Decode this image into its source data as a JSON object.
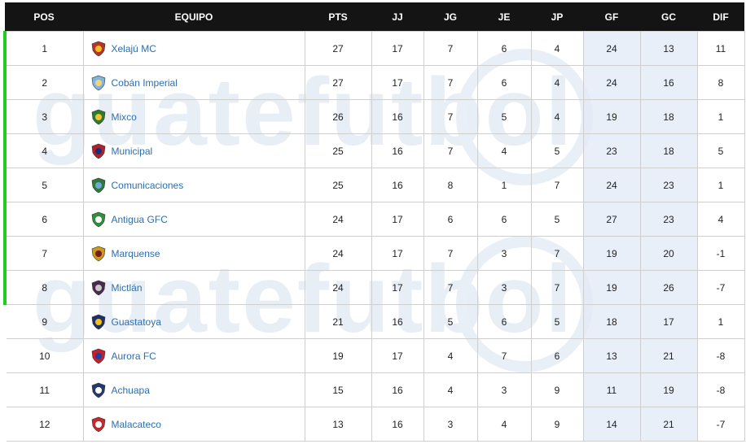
{
  "columns": [
    "POS",
    "EQUIPO",
    "PTS",
    "JJ",
    "JG",
    "JE",
    "JP",
    "GF",
    "GC",
    "DIF"
  ],
  "rows": [
    {
      "pos": "1",
      "team": "Xelajú MC",
      "pts": "27",
      "jj": "17",
      "jg": "7",
      "je": "6",
      "jp": "4",
      "gf": "24",
      "gc": "13",
      "dif": "11",
      "logo": "xelaju-shield",
      "c1": "#b8322a",
      "c2": "#f0c020"
    },
    {
      "pos": "2",
      "team": "Cobán Imperial",
      "pts": "27",
      "jj": "17",
      "jg": "7",
      "je": "6",
      "jp": "4",
      "gf": "24",
      "gc": "16",
      "dif": "8",
      "logo": "coban-shield",
      "c1": "#7fb6e0",
      "c2": "#f2d27a"
    },
    {
      "pos": "3",
      "team": "Mixco",
      "pts": "26",
      "jj": "16",
      "jg": "7",
      "je": "5",
      "jp": "4",
      "gf": "19",
      "gc": "18",
      "dif": "1",
      "logo": "mixco-shield",
      "c1": "#2d7b2f",
      "c2": "#f2c230"
    },
    {
      "pos": "4",
      "team": "Municipal",
      "pts": "25",
      "jj": "16",
      "jg": "7",
      "je": "4",
      "jp": "5",
      "gf": "23",
      "gc": "18",
      "dif": "5",
      "logo": "municipal-shield",
      "c1": "#b3202a",
      "c2": "#1b2f73"
    },
    {
      "pos": "5",
      "team": "Comunicaciones",
      "pts": "25",
      "jj": "16",
      "jg": "8",
      "je": "1",
      "jp": "7",
      "gf": "24",
      "gc": "23",
      "dif": "1",
      "logo": "comunicaciones-shield",
      "c1": "#2e7a3b",
      "c2": "#6fa8d8"
    },
    {
      "pos": "6",
      "team": "Antigua GFC",
      "pts": "24",
      "jj": "17",
      "jg": "6",
      "je": "6",
      "jp": "5",
      "gf": "27",
      "gc": "23",
      "dif": "4",
      "logo": "antigua-shield",
      "c1": "#2f8f3a",
      "c2": "#ffffff"
    },
    {
      "pos": "7",
      "team": "Marquense",
      "pts": "24",
      "jj": "17",
      "jg": "7",
      "je": "3",
      "jp": "7",
      "gf": "19",
      "gc": "20",
      "dif": "-1",
      "logo": "marquense-shield",
      "c1": "#c89a1e",
      "c2": "#7a1a1a"
    },
    {
      "pos": "8",
      "team": "Mictlán",
      "pts": "24",
      "jj": "17",
      "jg": "7",
      "je": "3",
      "jp": "7",
      "gf": "19",
      "gc": "26",
      "dif": "-7",
      "logo": "mictlan-shield",
      "c1": "#4a2a4e",
      "c2": "#c8c8c8"
    },
    {
      "pos": "9",
      "team": "Guastatoya",
      "pts": "21",
      "jj": "16",
      "jg": "5",
      "je": "6",
      "jp": "5",
      "gf": "18",
      "gc": "17",
      "dif": "1",
      "logo": "guastatoya-shield",
      "c1": "#1f2f6e",
      "c2": "#f2c21a"
    },
    {
      "pos": "10",
      "team": "Aurora FC",
      "pts": "19",
      "jj": "17",
      "jg": "4",
      "je": "7",
      "jp": "6",
      "gf": "13",
      "gc": "21",
      "dif": "-8",
      "logo": "aurora-shield",
      "c1": "#c81e2a",
      "c2": "#1f3f9a"
    },
    {
      "pos": "11",
      "team": "Achuapa",
      "pts": "15",
      "jj": "16",
      "jg": "4",
      "je": "3",
      "jp": "9",
      "gf": "11",
      "gc": "19",
      "dif": "-8",
      "logo": "achuapa-shield",
      "c1": "#24386e",
      "c2": "#ffffff"
    },
    {
      "pos": "12",
      "team": "Malacateco",
      "pts": "13",
      "jj": "16",
      "jg": "3",
      "je": "4",
      "jp": "9",
      "gf": "14",
      "gc": "21",
      "dif": "-7",
      "logo": "malacateco-shield",
      "c1": "#c6282f",
      "c2": "#ffffff"
    }
  ],
  "qualified_count": 8,
  "colors": {
    "header_bg": "#141414",
    "qualified_marker": "#22cc22",
    "team_link": "#2a6fb0",
    "highlight_cols": "#e2eaf6"
  },
  "watermark": "guatefutbol"
}
